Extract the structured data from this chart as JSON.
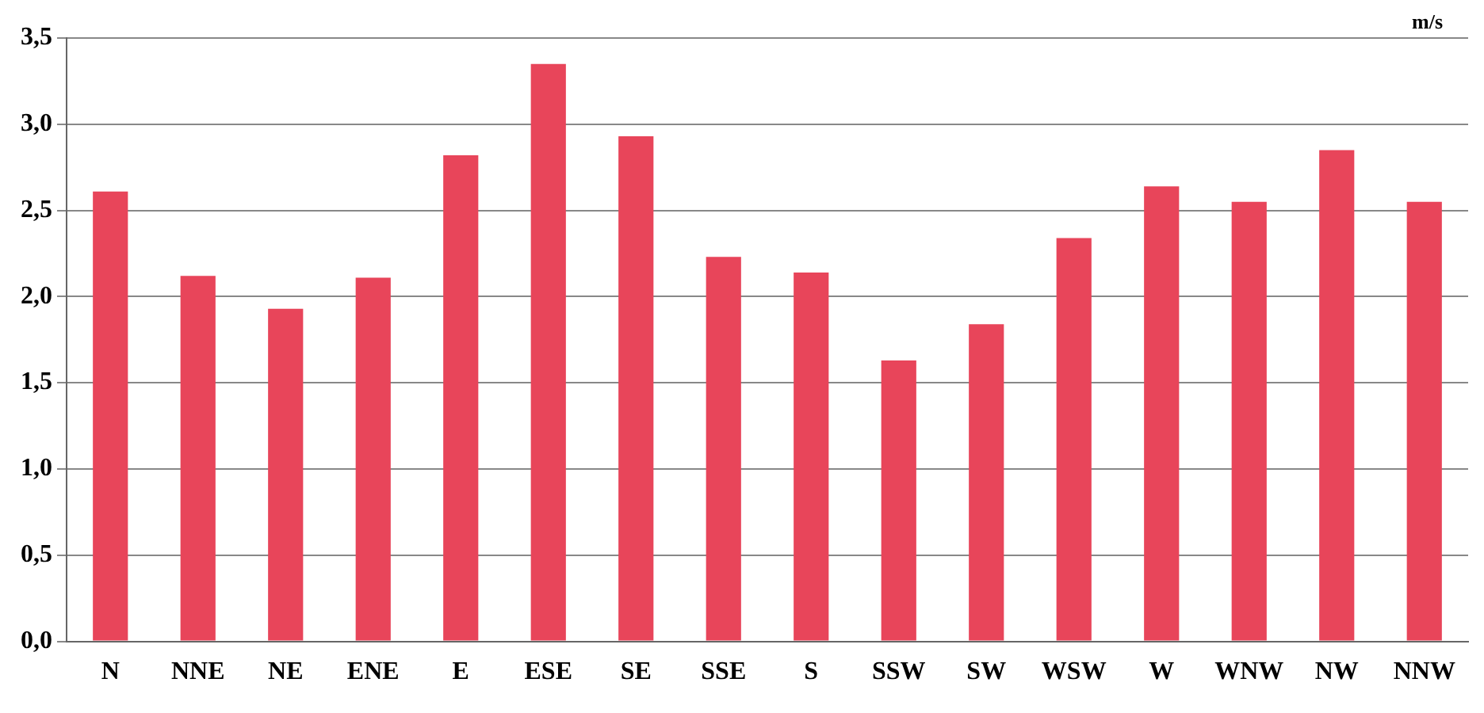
{
  "chart_data": {
    "type": "bar",
    "ylabel": "m/s",
    "categories": [
      "N",
      "NNE",
      "NE",
      "ENE",
      "E",
      "ESE",
      "SE",
      "SSE",
      "S",
      "SSW",
      "SW",
      "WSW",
      "W",
      "WNW",
      "NW",
      "NNW"
    ],
    "values": [
      2.61,
      2.12,
      1.93,
      2.11,
      2.82,
      3.35,
      2.93,
      2.23,
      2.14,
      1.63,
      1.84,
      2.34,
      2.64,
      2.55,
      2.85,
      2.55
    ],
    "color": "#e8455a",
    "ylim": [
      0,
      3.5
    ],
    "yticks": [
      {
        "value": 0,
        "label": "0,0"
      },
      {
        "value": 0.5,
        "label": "0,5"
      },
      {
        "value": 1,
        "label": "1,0"
      },
      {
        "value": 1.5,
        "label": "1,5"
      },
      {
        "value": 2,
        "label": "2,0"
      },
      {
        "value": 2.5,
        "label": "2,5"
      },
      {
        "value": 3,
        "label": "3,0"
      },
      {
        "value": 3.5,
        "label": "3,5"
      }
    ],
    "grid": "y",
    "legend": false
  }
}
